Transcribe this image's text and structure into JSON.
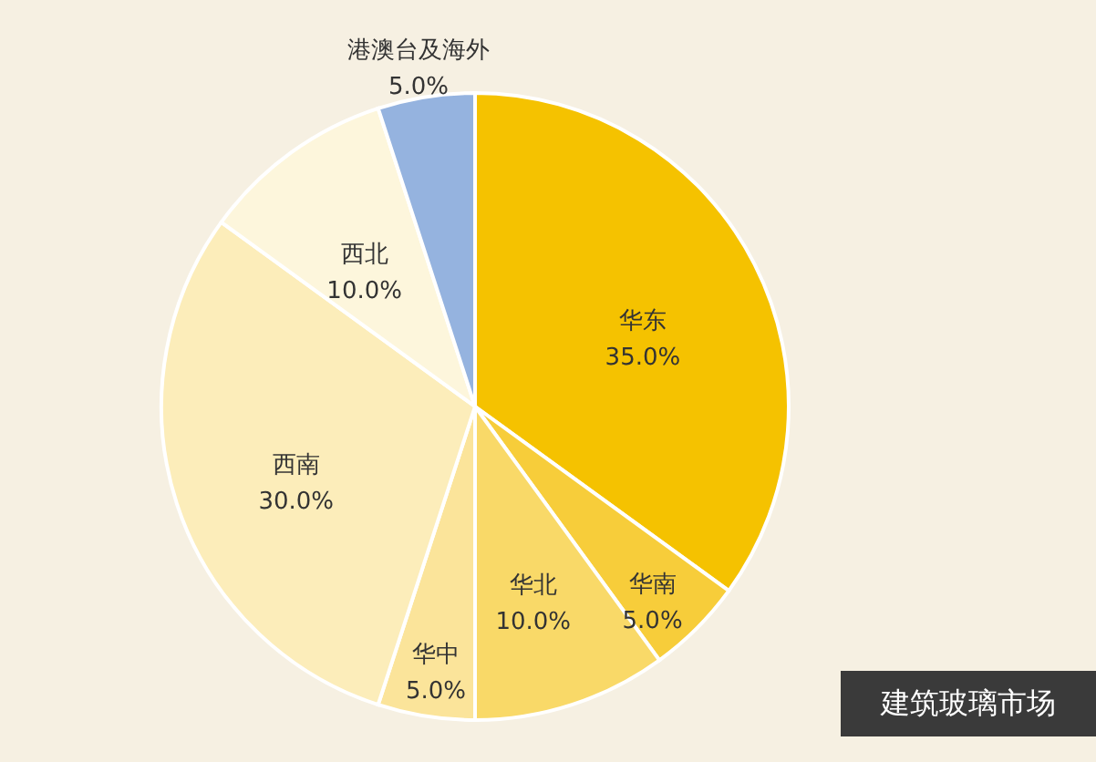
{
  "chart_data": {
    "type": "pie",
    "categories": [
      "华东",
      "华南",
      "华北",
      "华中",
      "西南",
      "西北",
      "港澳台及海外"
    ],
    "values": [
      35,
      5,
      10,
      5,
      30,
      10,
      5
    ],
    "colors": [
      "#f5c200",
      "#f7cd3a",
      "#f9d968",
      "#fbe49a",
      "#fcedba",
      "#fdf6dc",
      "#95b3df"
    ],
    "data_labels": true,
    "value_labels": [
      "35.0%",
      "5.0%",
      "10.0%",
      "5.0%",
      "30.0%",
      "10.0%",
      "5.0%"
    ],
    "annotations": [
      "建筑玻璃市场"
    ]
  }
}
